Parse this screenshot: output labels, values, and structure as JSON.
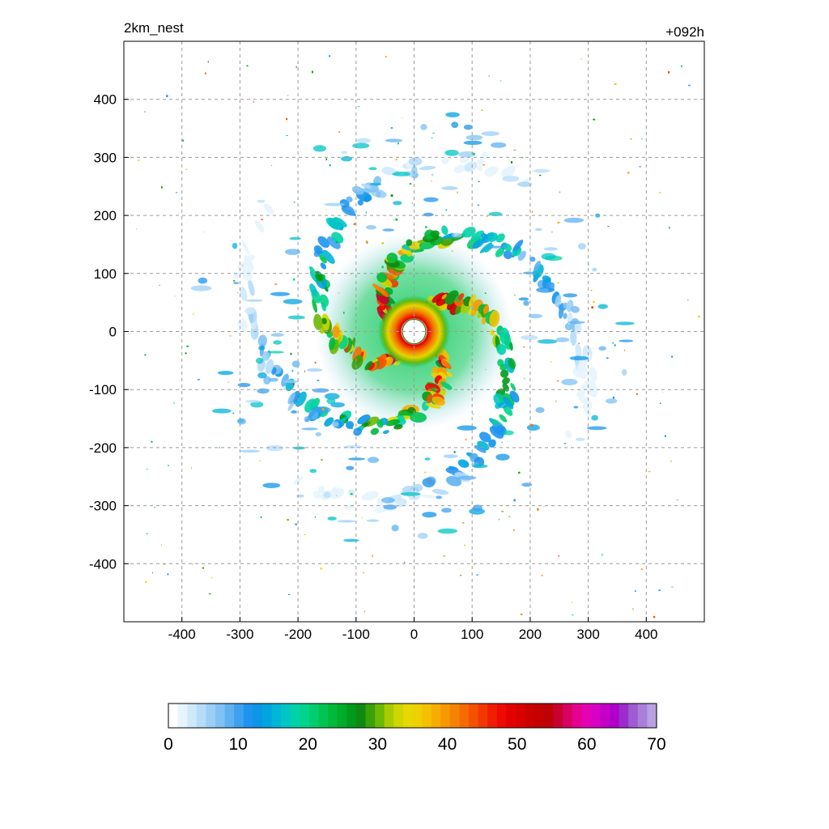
{
  "title_left": "2km_nest",
  "title_right": "+092h",
  "chart_data": {
    "type": "heatmap",
    "description_field": "shaded field of a tropical cyclone on a 2 km nested grid",
    "x_range": [
      -500,
      500
    ],
    "y_range": [
      -500,
      500
    ],
    "x_ticks": [
      -400,
      -300,
      -200,
      -100,
      0,
      100,
      200,
      300,
      400
    ],
    "y_ticks": [
      400,
      300,
      200,
      100,
      0,
      -100,
      -200,
      -300,
      -400
    ],
    "grid": true,
    "grid_style": "dashed",
    "center": [
      0,
      0
    ],
    "eye_radius": 20,
    "eyewall_radius": 40,
    "colorbar": {
      "range": [
        0,
        70
      ],
      "tick_values": [
        0,
        10,
        20,
        30,
        40,
        50,
        60,
        70
      ],
      "tick_labels": [
        "0",
        "10",
        "20",
        "30",
        "40",
        "50",
        "60",
        "70"
      ],
      "colors": [
        "#ffffff",
        "#e6f4fd",
        "#cfe9fb",
        "#b5dcf9",
        "#9bcff6",
        "#80c2f4",
        "#5fb2f2",
        "#3da1ef",
        "#1e94ee",
        "#0d95e8",
        "#00a4e0",
        "#00b5d6",
        "#00c5c5",
        "#00d2a8",
        "#00d48a",
        "#00cd6e",
        "#00c452",
        "#00b83a",
        "#00ac2a",
        "#009a1c",
        "#0f8a0f",
        "#3aa10a",
        "#6cb805",
        "#a8cc00",
        "#cfd600",
        "#e6d800",
        "#efd000",
        "#f4c000",
        "#f7ad00",
        "#f79800",
        "#f58200",
        "#f46b00",
        "#f35100",
        "#f23800",
        "#f01e00",
        "#ee0a00",
        "#e50000",
        "#d90000",
        "#cd0000",
        "#c40000",
        "#c00008",
        "#c8002e",
        "#d80060",
        "#e50090",
        "#e600b4",
        "#d800c4",
        "#c400c8",
        "#b000c8",
        "#9c2ccc",
        "#a05ad2",
        "#a880da",
        "#b8a0e2"
      ]
    }
  }
}
